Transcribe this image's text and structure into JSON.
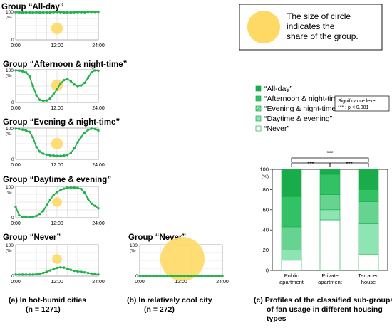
{
  "colors": {
    "line": "#22b14c",
    "circle": "#ffd966",
    "all_day": "#1aac4a",
    "afternoon_night": "#33c166",
    "evening_night": "#66d390",
    "daytime_evening": "#8ee5b4",
    "never": "#ffffff"
  },
  "circle_box": {
    "text_lines": [
      "The size of circle",
      "indicates the",
      "share of the group."
    ]
  },
  "legend": {
    "items": [
      "“All-day”",
      "“Afternoon & night-time”",
      "“Evening & night-time”",
      "“Daytime & evening”",
      "“Never”"
    ],
    "significance_title": "Significance level",
    "significance_text": "*** : p < 0.001"
  },
  "captions": {
    "a_line1": "(a) In hot-humid cities",
    "a_line2": "(n = 1271)",
    "b_line1": "(b) In relatively cool city",
    "b_line2": "(n = 272)",
    "c_line1": "(c) Profiles of the classified sub-groups",
    "c_line2": "of fan usage in different housing",
    "c_line3": "types"
  },
  "chart_data": [
    {
      "type": "line",
      "panel": "a",
      "title": "Group “All-day”",
      "ylabel": "(%)",
      "yticks": [
        "100",
        "0"
      ],
      "xticks": [
        "0:00",
        "12:00",
        "24:00"
      ],
      "ylim": [
        0,
        100
      ],
      "xlim": [
        0,
        24
      ],
      "grid": true,
      "circle_share": 0.07,
      "x": [
        0,
        1,
        2,
        3,
        4,
        5,
        6,
        7,
        8,
        9,
        10,
        11,
        12,
        13,
        14,
        15,
        16,
        17,
        18,
        19,
        20,
        21,
        22,
        23,
        24
      ],
      "values": [
        97,
        96,
        96,
        96,
        96,
        96,
        96,
        96,
        96,
        96,
        96,
        97,
        98,
        97,
        96,
        96,
        96,
        97,
        97,
        97,
        97,
        98,
        98,
        98,
        98
      ]
    },
    {
      "type": "line",
      "panel": "a",
      "title": "Group “Afternoon & night-time”",
      "ylabel": "(%)",
      "yticks": [
        "100",
        "0"
      ],
      "xticks": [
        "0:00",
        "12:00",
        "24:00"
      ],
      "ylim": [
        0,
        100
      ],
      "xlim": [
        0,
        24
      ],
      "grid": true,
      "circle_share": 0.07,
      "x": [
        0,
        1,
        2,
        3,
        4,
        5,
        6,
        7,
        8,
        9,
        10,
        11,
        12,
        13,
        14,
        15,
        16,
        17,
        18,
        19,
        20,
        21,
        22,
        23,
        24
      ],
      "values": [
        98,
        97,
        95,
        92,
        80,
        50,
        22,
        8,
        5,
        6,
        12,
        25,
        40,
        58,
        68,
        72,
        65,
        55,
        50,
        52,
        60,
        75,
        92,
        98,
        97
      ]
    },
    {
      "type": "line",
      "panel": "a",
      "title": "Group “Evening & night-time”",
      "ylabel": "(%)",
      "yticks": [
        "100",
        "0"
      ],
      "xticks": [
        "0:00",
        "12:00",
        "24:00"
      ],
      "ylim": [
        0,
        100
      ],
      "xlim": [
        0,
        24
      ],
      "grid": true,
      "circle_share": 0.07,
      "x": [
        0,
        1,
        2,
        3,
        4,
        5,
        6,
        7,
        8,
        9,
        10,
        11,
        12,
        13,
        14,
        15,
        16,
        17,
        18,
        19,
        20,
        21,
        22,
        23,
        24
      ],
      "values": [
        98,
        97,
        95,
        92,
        88,
        70,
        40,
        25,
        18,
        15,
        13,
        12,
        11,
        11,
        12,
        14,
        20,
        35,
        55,
        72,
        85,
        94,
        98,
        97,
        92
      ]
    },
    {
      "type": "line",
      "panel": "a",
      "title": "Group “Daytime & evening”",
      "ylabel": "(%)",
      "yticks": [
        "100",
        "0"
      ],
      "xticks": [
        "0:00",
        "12:00",
        "24:00"
      ],
      "ylim": [
        0,
        100
      ],
      "xlim": [
        0,
        24
      ],
      "grid": true,
      "circle_share": 0.05,
      "x": [
        0,
        1,
        2,
        3,
        4,
        5,
        6,
        7,
        8,
        9,
        10,
        11,
        12,
        13,
        14,
        15,
        16,
        17,
        18,
        19,
        20,
        21,
        22,
        23,
        24
      ],
      "values": [
        35,
        8,
        3,
        2,
        2,
        3,
        6,
        12,
        22,
        40,
        58,
        72,
        82,
        88,
        93,
        96,
        96,
        96,
        95,
        92,
        80,
        60,
        45,
        38,
        30
      ]
    },
    {
      "type": "line",
      "panel": "a",
      "title": "Group “Never”",
      "ylabel": "(%)",
      "yticks": [
        "100",
        "0"
      ],
      "xticks": [
        "0:00",
        "12:00",
        "24:00"
      ],
      "ylim": [
        0,
        100
      ],
      "xlim": [
        0,
        24
      ],
      "grid": true,
      "circle_share": 0.05,
      "x": [
        0,
        1,
        2,
        3,
        4,
        5,
        6,
        7,
        8,
        9,
        10,
        11,
        12,
        13,
        14,
        15,
        16,
        17,
        18,
        19,
        20,
        21,
        22,
        23,
        24
      ],
      "values": [
        5,
        5,
        5,
        5,
        5,
        5,
        6,
        7,
        10,
        14,
        18,
        22,
        26,
        28,
        27,
        24,
        20,
        17,
        15,
        14,
        12,
        10,
        8,
        6,
        5
      ]
    },
    {
      "type": "line",
      "panel": "b",
      "title": "Group “Never”",
      "ylabel": "(%)",
      "yticks": [
        "100",
        "0"
      ],
      "xticks": [
        "0:00",
        "12:00",
        "24:00"
      ],
      "ylim": [
        0,
        100
      ],
      "xlim": [
        0,
        24
      ],
      "grid": true,
      "circle_share": 1.0,
      "x": [
        0,
        1,
        2,
        3,
        4,
        5,
        6,
        7,
        8,
        9,
        10,
        11,
        12,
        13,
        14,
        15,
        16,
        17,
        18,
        19,
        20,
        21,
        22,
        23,
        24
      ],
      "values": [
        0,
        0,
        0,
        0,
        0,
        0,
        0,
        0,
        0,
        0,
        0,
        0,
        0,
        0,
        0,
        0,
        0,
        0,
        0,
        0,
        0,
        0,
        0,
        0,
        0
      ]
    },
    {
      "type": "bar",
      "panel": "c",
      "stacked": true,
      "categories": [
        "Public apartment",
        "Private apartment",
        "Terraced house"
      ],
      "ylabel": "(%)",
      "yticks": [
        "0",
        "20",
        "40",
        "60",
        "80",
        "100"
      ],
      "ylim": [
        0,
        100
      ],
      "significance_marker": "***",
      "series": [
        {
          "name": "“Never”",
          "values": [
            10,
            50,
            16
          ]
        },
        {
          "name": "“Daytime & evening”",
          "values": [
            10,
            10,
            30
          ]
        },
        {
          "name": "“Evening & night-time”",
          "values": [
            23,
            15,
            22
          ]
        },
        {
          "name": "“Afternoon & night-time”",
          "values": [
            30,
            20,
            12
          ]
        },
        {
          "name": "“All-day”",
          "values": [
            27,
            5,
            20
          ]
        }
      ]
    }
  ]
}
